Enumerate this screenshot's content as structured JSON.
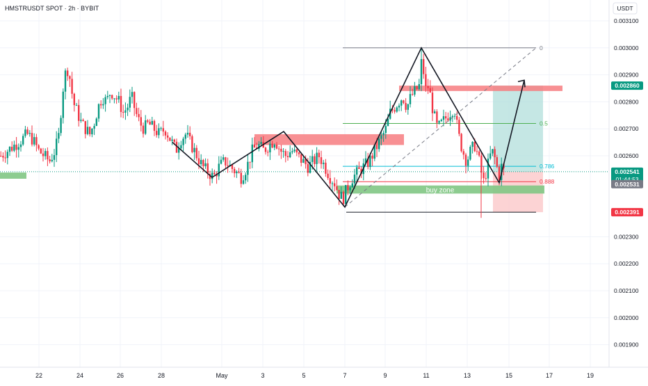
{
  "header": {
    "title": "HMSTRUSDT SPOT · 2h · BYBIT"
  },
  "currency_button": {
    "label": "USDT"
  },
  "colors": {
    "up": "#089981",
    "down": "#f23645",
    "grid": "#f0f3fa",
    "fib_zero": "#787b86",
    "fib_half": "#4caf50",
    "fib_786": "#00bcd4",
    "fib_888": "#f23645",
    "supply": "#f77c80",
    "demand": "#81c784",
    "tp_fill": "#b2dfdb",
    "sl_fill": "#fccbcd",
    "price_label": "#089981",
    "timer_label": "#089981",
    "prev_label": "#787b86",
    "sl_label": "#f23645"
  },
  "chart_data": {
    "type": "candlestick",
    "title": "HMSTRUSDT SPOT · 2h · BYBIT",
    "symbol": "HMSTRUSDT",
    "interval": "2h",
    "exchange": "BYBIT",
    "y_axis": {
      "ticks": [
        "0.003100",
        "0.003000",
        "0.002900",
        "0.002800",
        "0.002700",
        "0.002600",
        "0.002300",
        "0.002200",
        "0.002100",
        "0.002000",
        "0.001900"
      ],
      "range": [
        0.00184,
        0.00314
      ]
    },
    "x_axis": {
      "ticks": [
        "22",
        "24",
        "26",
        "28",
        "May",
        "3",
        "5",
        "7",
        "9",
        "11",
        "13",
        "15",
        "17",
        "19"
      ]
    },
    "price_labels": {
      "target": "0.002860",
      "current": "0.002541",
      "countdown": "01:44:53",
      "previous": "0.002531",
      "stop": "0.002391"
    },
    "fib_levels": [
      {
        "label": "0",
        "price": 0.003
      },
      {
        "label": "0.5",
        "price": 0.00272
      },
      {
        "label": "0.786",
        "price": 0.002561
      },
      {
        "label": "0.888",
        "price": 0.002504
      }
    ],
    "annotations": {
      "buy_zone": "buy zone"
    },
    "price_path": [
      [
        0,
        0.0026
      ],
      [
        10,
        0.00262
      ],
      [
        20,
        0.00264
      ],
      [
        30,
        0.00266
      ],
      [
        38,
        0.00268
      ],
      [
        46,
        0.00266
      ],
      [
        54,
        0.00262
      ],
      [
        62,
        0.0026
      ],
      [
        70,
        0.00258
      ],
      [
        78,
        0.00262
      ],
      [
        84,
        0.00268
      ],
      [
        88,
        0.00282
      ],
      [
        92,
        0.0029
      ],
      [
        96,
        0.00292
      ],
      [
        100,
        0.00288
      ],
      [
        104,
        0.0028
      ],
      [
        110,
        0.00276
      ],
      [
        116,
        0.00272
      ],
      [
        122,
        0.0027
      ],
      [
        128,
        0.00268
      ],
      [
        134,
        0.00272
      ],
      [
        140,
        0.00278
      ],
      [
        146,
        0.00282
      ],
      [
        152,
        0.0028
      ],
      [
        158,
        0.00284
      ],
      [
        164,
        0.00282
      ],
      [
        170,
        0.0028
      ],
      [
        176,
        0.00276
      ],
      [
        182,
        0.00278
      ],
      [
        188,
        0.00282
      ],
      [
        194,
        0.00276
      ],
      [
        200,
        0.00272
      ],
      [
        206,
        0.0027
      ],
      [
        212,
        0.00272
      ],
      [
        220,
        0.0027
      ],
      [
        228,
        0.00268
      ],
      [
        236,
        0.0027
      ],
      [
        244,
        0.00266
      ],
      [
        252,
        0.00262
      ],
      [
        258,
        0.00266
      ],
      [
        266,
        0.00268
      ],
      [
        274,
        0.00264
      ],
      [
        282,
        0.0026
      ],
      [
        290,
        0.00256
      ],
      [
        298,
        0.00254
      ],
      [
        306,
        0.00252
      ],
      [
        314,
        0.00256
      ],
      [
        322,
        0.00258
      ],
      [
        330,
        0.00256
      ],
      [
        338,
        0.00254
      ],
      [
        346,
        0.00252
      ],
      [
        354,
        0.00256
      ],
      [
        362,
        0.00262
      ],
      [
        370,
        0.00264
      ],
      [
        378,
        0.00262
      ],
      [
        386,
        0.00264
      ],
      [
        394,
        0.00266
      ],
      [
        402,
        0.00262
      ],
      [
        410,
        0.0026
      ],
      [
        418,
        0.00262
      ],
      [
        426,
        0.0026
      ],
      [
        434,
        0.00258
      ],
      [
        442,
        0.00256
      ],
      [
        450,
        0.00258
      ],
      [
        458,
        0.0026
      ],
      [
        466,
        0.00256
      ],
      [
        474,
        0.00252
      ],
      [
        480,
        0.0025
      ],
      [
        486,
        0.00246
      ],
      [
        492,
        0.00244
      ],
      [
        498,
        0.00248
      ],
      [
        506,
        0.00252
      ],
      [
        514,
        0.00254
      ],
      [
        522,
        0.00256
      ],
      [
        530,
        0.00258
      ],
      [
        538,
        0.00262
      ],
      [
        546,
        0.00266
      ],
      [
        554,
        0.0027
      ],
      [
        560,
        0.00276
      ],
      [
        566,
        0.00278
      ],
      [
        572,
        0.0028
      ],
      [
        578,
        0.00282
      ],
      [
        584,
        0.00278
      ],
      [
        590,
        0.00282
      ],
      [
        596,
        0.00284
      ],
      [
        602,
        0.00286
      ],
      [
        606,
        0.00298
      ],
      [
        610,
        0.00284
      ],
      [
        614,
        0.00286
      ],
      [
        618,
        0.00282
      ],
      [
        622,
        0.00276
      ],
      [
        628,
        0.0027
      ],
      [
        634,
        0.00272
      ],
      [
        640,
        0.00274
      ],
      [
        646,
        0.00276
      ],
      [
        652,
        0.00278
      ],
      [
        658,
        0.00268
      ],
      [
        664,
        0.00262
      ],
      [
        670,
        0.00258
      ],
      [
        676,
        0.00262
      ],
      [
        682,
        0.00264
      ],
      [
        688,
        0.00258
      ],
      [
        694,
        0.0025
      ],
      [
        700,
        0.00256
      ],
      [
        706,
        0.00262
      ],
      [
        712,
        0.00258
      ],
      [
        716,
        0.00252
      ],
      [
        720,
        0.00256
      ],
      [
        724,
        0.00254
      ]
    ],
    "pattern_path": [
      [
        248,
        0.00265
      ],
      [
        305,
        0.00252
      ],
      [
        408,
        0.00269
      ],
      [
        496,
        0.00241
      ],
      [
        606,
        0.003
      ],
      [
        718,
        0.0025
      ],
      [
        754,
        0.00288
      ]
    ]
  }
}
